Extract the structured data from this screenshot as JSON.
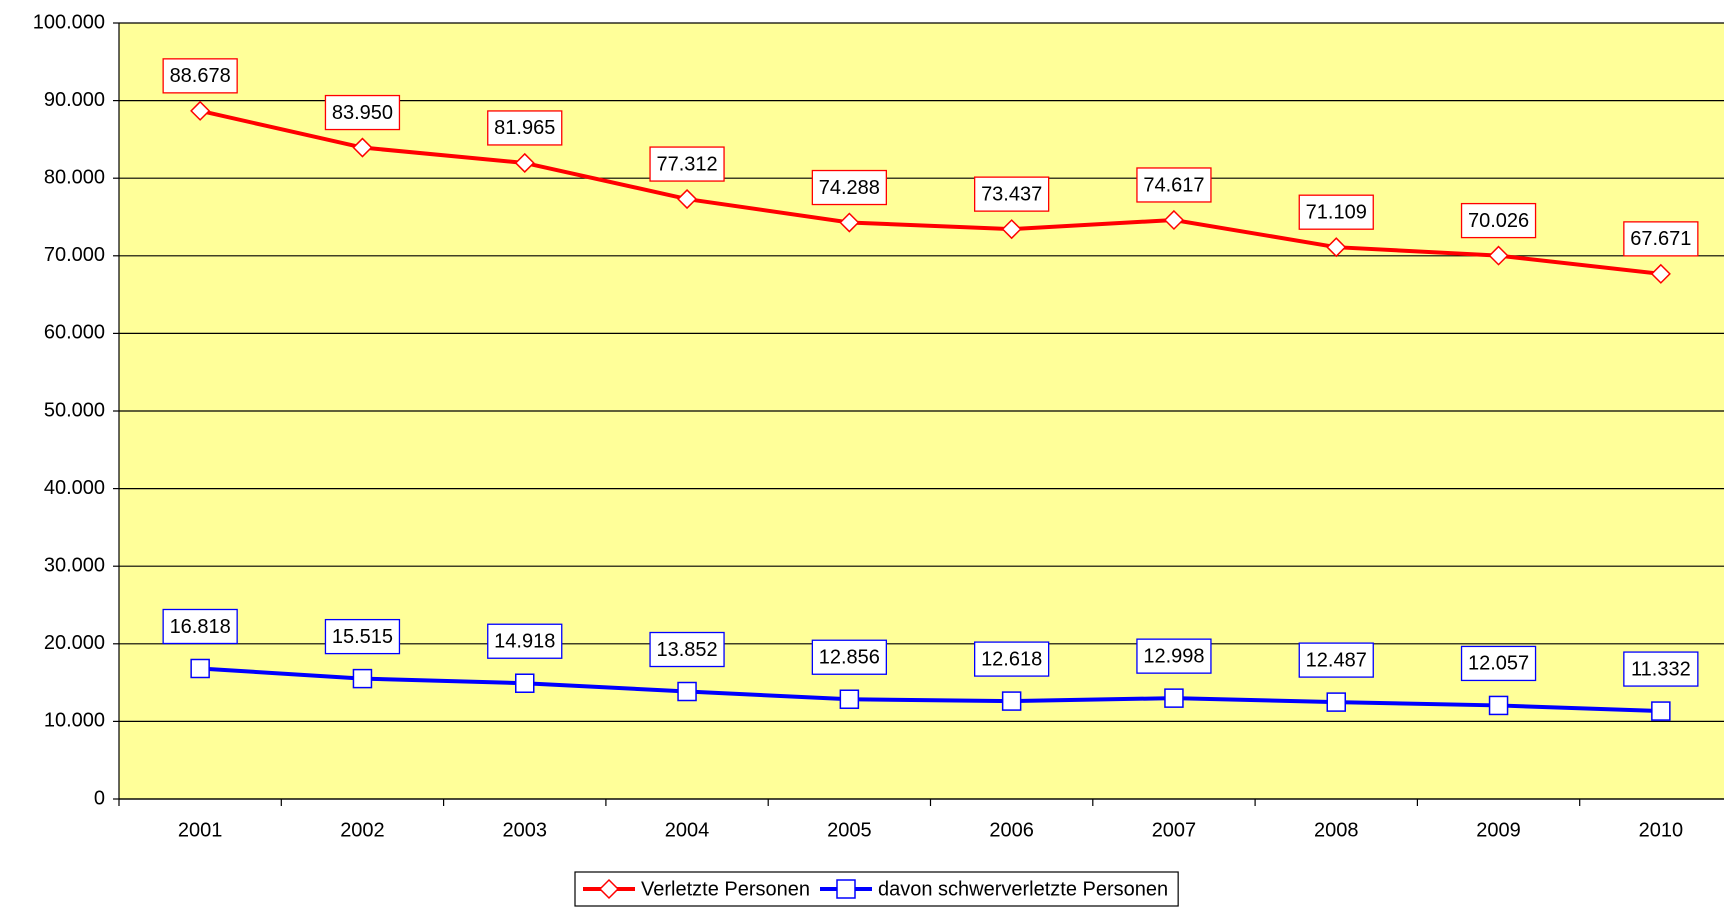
{
  "chart_data": {
    "type": "line",
    "categories": [
      "2001",
      "2002",
      "2003",
      "2004",
      "2005",
      "2006",
      "2007",
      "2008",
      "2009",
      "2010"
    ],
    "series": [
      {
        "name": "Verletzte Personen",
        "color": "#ff0000",
        "marker": "diamond",
        "values": [
          88678,
          83950,
          81965,
          77312,
          74288,
          73437,
          74617,
          71109,
          70026,
          67671
        ],
        "value_labels": [
          "88.678",
          "83.950",
          "81.965",
          "77.312",
          "74.288",
          "73.437",
          "74.617",
          "71.109",
          "70.026",
          "67.671"
        ]
      },
      {
        "name": "davon schwerverletzte Personen",
        "color": "#0000ff",
        "marker": "square",
        "values": [
          16818,
          15515,
          14918,
          13852,
          12856,
          12618,
          12998,
          12487,
          12057,
          11332
        ],
        "value_labels": [
          "16.818",
          "15.515",
          "14.918",
          "13.852",
          "12.856",
          "12.618",
          "12.998",
          "12.487",
          "12.057",
          "11.332"
        ]
      }
    ],
    "ylim": [
      0,
      100000
    ],
    "yticks": [
      0,
      {
        "value": 10000,
        "label": "10.000"
      },
      {
        "value": 20000,
        "label": "20.000"
      },
      {
        "value": 30000,
        "label": "30.000"
      },
      {
        "value": 40000,
        "label": "40.000"
      },
      {
        "value": 50000,
        "label": "50.000"
      },
      {
        "value": 60000,
        "label": "60.000"
      },
      {
        "value": 70000,
        "label": "70.000"
      },
      {
        "value": 80000,
        "label": "80.000"
      },
      {
        "value": 90000,
        "label": "90.000"
      },
      {
        "value": 100000,
        "label": "100.000"
      }
    ],
    "grid": true,
    "background": "#ffff99",
    "legend": "bottom"
  }
}
